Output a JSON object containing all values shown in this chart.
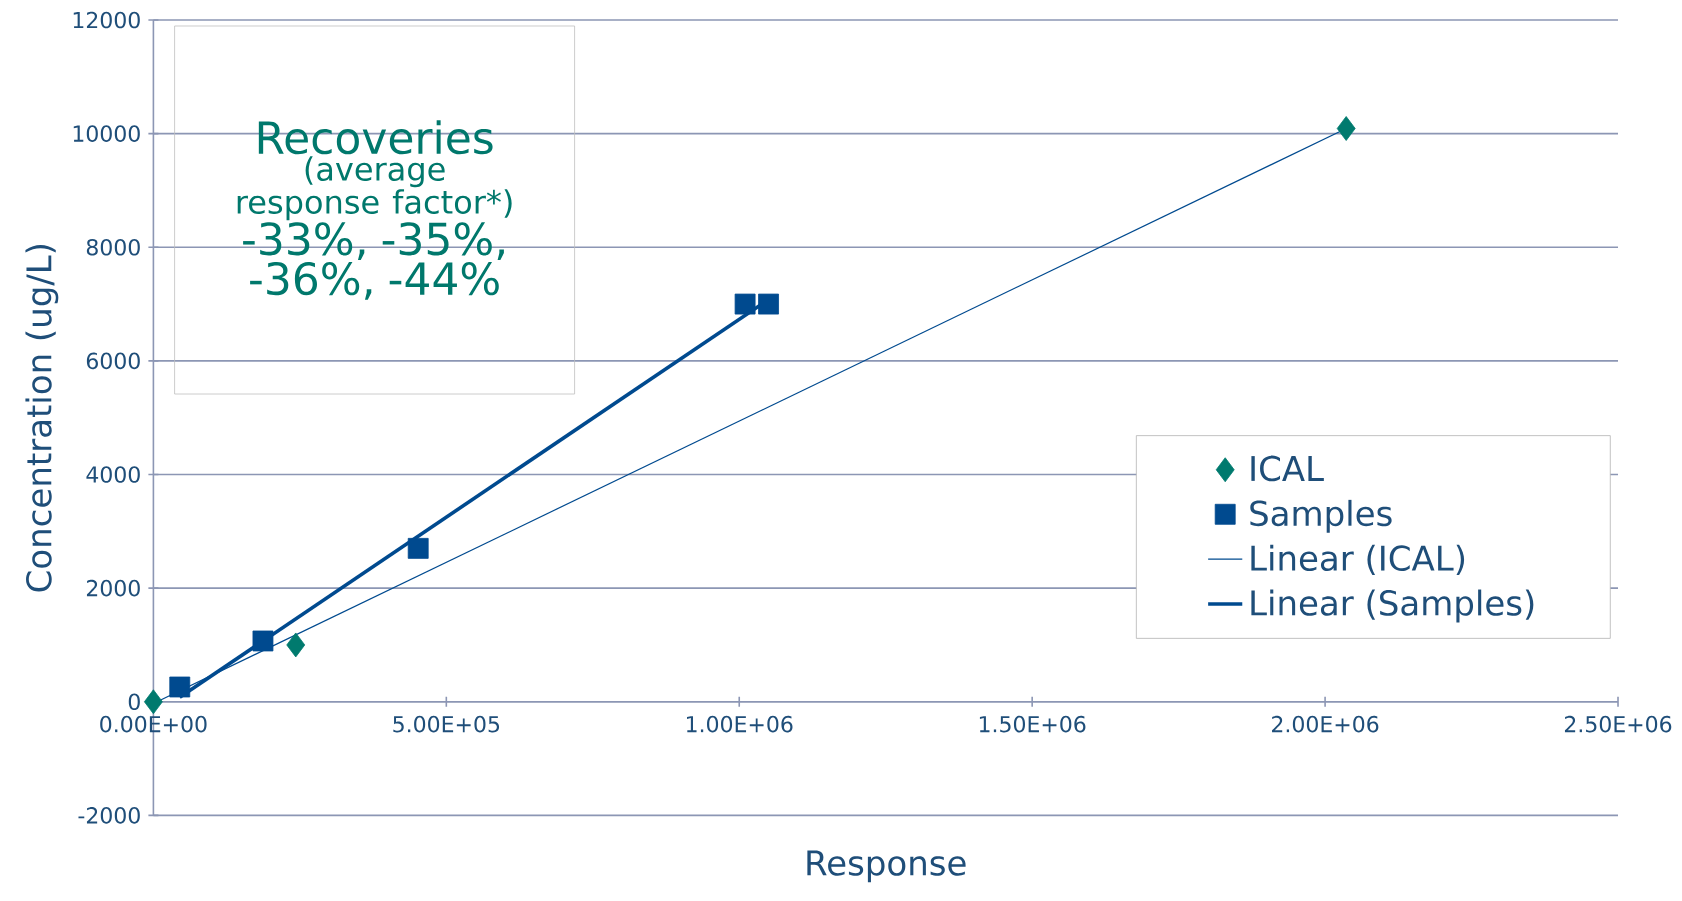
{
  "chart_data": {
    "type": "scatter",
    "xlabel": "Response",
    "ylabel": "Concentration (ug/L)",
    "xlim": [
      0,
      2500000
    ],
    "ylim": [
      -2000,
      12000
    ],
    "xticks": [
      {
        "value": 0,
        "label": "0.00E+00"
      },
      {
        "value": 500000,
        "label": "5.00E+05"
      },
      {
        "value": 1000000,
        "label": "1.00E+06"
      },
      {
        "value": 1500000,
        "label": "1.50E+06"
      },
      {
        "value": 2000000,
        "label": "2.00E+06"
      },
      {
        "value": 2500000,
        "label": "2.50E+06"
      }
    ],
    "yticks": [
      -2000,
      0,
      2000,
      4000,
      6000,
      8000,
      10000,
      12000
    ],
    "grid": "y",
    "legend": "right",
    "series": [
      {
        "name": "ICAL",
        "marker": "diamond",
        "color": "#007a6e",
        "x": [
          0,
          243000,
          2036000
        ],
        "values": [
          0,
          1000,
          10090
        ]
      },
      {
        "name": "Samples",
        "marker": "square",
        "color": "#004a8f",
        "x": [
          45000,
          187000,
          452000,
          1010000,
          1050000
        ],
        "values": [
          260,
          1070,
          2700,
          7000,
          7000
        ]
      },
      {
        "name": "Linear (ICAL)",
        "type": "line",
        "marker": "none",
        "color": "#004a8f",
        "x": [
          0,
          2036000
        ],
        "values": [
          -30,
          10090
        ]
      },
      {
        "name": "Linear (Samples)",
        "type": "line",
        "marker": "none",
        "color": "#004a8f",
        "x": [
          45000,
          1050000
        ],
        "values": [
          80,
          7080
        ]
      }
    ],
    "annotations": [
      "Recoveries",
      "(average response factor*)",
      "-33%, -35%, -36%, -44%"
    ]
  }
}
